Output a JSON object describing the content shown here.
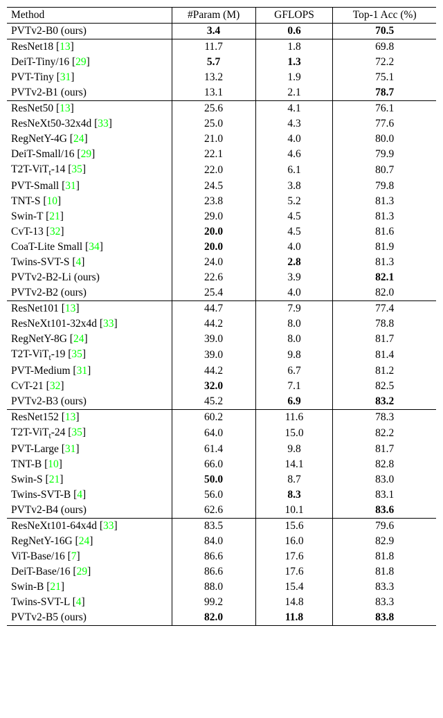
{
  "colors": {
    "cite": "#00ff00",
    "text": "#000000",
    "bg": "#ffffff"
  },
  "font": {
    "family": "Times New Roman",
    "size_pt": 15.5
  },
  "header": {
    "method": "Method",
    "param": "#Param (M)",
    "gflops": "GFLOPS",
    "acc": "Top-1 Acc (%)"
  },
  "groups": [
    {
      "rows": [
        {
          "method": "PVTv2-B0 (ours)",
          "cite": null,
          "param": "3.4",
          "gflops": "0.6",
          "acc": "70.5",
          "bold_param": true,
          "bold_gflops": true,
          "bold_acc": true
        }
      ]
    },
    {
      "rows": [
        {
          "method_pre": "ResNet18 [",
          "cite": "13",
          "method_post": "]",
          "param": "11.7",
          "gflops": "1.8",
          "acc": "69.8"
        },
        {
          "method_pre": "DeiT-Tiny/16 [",
          "cite": "29",
          "method_post": "]",
          "param": "5.7",
          "gflops": "1.3",
          "acc": "72.2",
          "bold_param": true,
          "bold_gflops": true
        },
        {
          "method_pre": "PVT-Tiny [",
          "cite": "31",
          "method_post": "]",
          "param": "13.2",
          "gflops": "1.9",
          "acc": "75.1"
        },
        {
          "method": "PVTv2-B1 (ours)",
          "cite": null,
          "param": "13.1",
          "gflops": "2.1",
          "acc": "78.7",
          "bold_acc": true
        }
      ]
    },
    {
      "rows": [
        {
          "method_pre": "ResNet50 [",
          "cite": "13",
          "method_post": "]",
          "param": "25.6",
          "gflops": "4.1",
          "acc": "76.1"
        },
        {
          "method_pre": "ResNeXt50-32x4d [",
          "cite": "33",
          "method_post": "]",
          "param": "25.0",
          "gflops": "4.3",
          "acc": "77.6"
        },
        {
          "method_pre": "RegNetY-4G [",
          "cite": "24",
          "method_post": "]",
          "param": "21.0",
          "gflops": "4.0",
          "acc": "80.0"
        },
        {
          "method_pre": "DeiT-Small/16 [",
          "cite": "29",
          "method_post": "]",
          "param": "22.1",
          "gflops": "4.6",
          "acc": "79.9"
        },
        {
          "method_pre": "T2T-ViT",
          "sub": "t",
          "method_mid": "-14 [",
          "cite": "35",
          "method_post": "]",
          "param": "22.0",
          "gflops": "6.1",
          "acc": "80.7"
        },
        {
          "method_pre": "PVT-Small [",
          "cite": "31",
          "method_post": "]",
          "param": "24.5",
          "gflops": "3.8",
          "acc": "79.8"
        },
        {
          "method_pre": "TNT-S [",
          "cite": "10",
          "method_post": "]",
          "param": "23.8",
          "gflops": "5.2",
          "acc": "81.3"
        },
        {
          "method_pre": "Swin-T [",
          "cite": "21",
          "method_post": "]",
          "param": "29.0",
          "gflops": "4.5",
          "acc": "81.3"
        },
        {
          "method_pre": "CvT-13 [",
          "cite": "32",
          "method_post": "]",
          "param": "20.0",
          "gflops": "4.5",
          "acc": "81.6",
          "bold_param": true
        },
        {
          "method_pre": "CoaT-Lite Small [",
          "cite": "34",
          "method_post": "]",
          "param": "20.0",
          "gflops": "4.0",
          "acc": "81.9",
          "bold_param": true
        },
        {
          "method_pre": "Twins-SVT-S [",
          "cite": "4",
          "method_post": "]",
          "param": "24.0",
          "gflops": "2.8",
          "acc": "81.3",
          "bold_gflops": true
        },
        {
          "method": "PVTv2-B2-Li (ours)",
          "cite": null,
          "param": "22.6",
          "gflops": "3.9",
          "acc": "82.1",
          "bold_acc": true
        },
        {
          "method": "PVTv2-B2 (ours)",
          "cite": null,
          "param": "25.4",
          "gflops": "4.0",
          "acc": "82.0"
        }
      ]
    },
    {
      "rows": [
        {
          "method_pre": "ResNet101 [",
          "cite": "13",
          "method_post": "]",
          "param": "44.7",
          "gflops": "7.9",
          "acc": "77.4"
        },
        {
          "method_pre": "ResNeXt101-32x4d [",
          "cite": "33",
          "method_post": "]",
          "param": "44.2",
          "gflops": "8.0",
          "acc": "78.8"
        },
        {
          "method_pre": "RegNetY-8G [",
          "cite": "24",
          "method_post": "]",
          "param": "39.0",
          "gflops": "8.0",
          "acc": "81.7"
        },
        {
          "method_pre": "T2T-ViT",
          "sub": "t",
          "method_mid": "-19 [",
          "cite": "35",
          "method_post": "]",
          "param": "39.0",
          "gflops": "9.8",
          "acc": "81.4"
        },
        {
          "method_pre": "PVT-Medium [",
          "cite": "31",
          "method_post": "]",
          "param": "44.2",
          "gflops": "6.7",
          "acc": "81.2"
        },
        {
          "method_pre": "CvT-21 [",
          "cite": "32",
          "method_post": "]",
          "param": "32.0",
          "gflops": "7.1",
          "acc": "82.5",
          "bold_param": true
        },
        {
          "method": "PVTv2-B3 (ours)",
          "cite": null,
          "param": "45.2",
          "gflops": "6.9",
          "acc": "83.2",
          "bold_gflops": true,
          "bold_acc": true
        }
      ]
    },
    {
      "rows": [
        {
          "method_pre": "ResNet152 [",
          "cite": "13",
          "method_post": "]",
          "param": "60.2",
          "gflops": "11.6",
          "acc": "78.3"
        },
        {
          "method_pre": "T2T-ViT",
          "sub": "t",
          "method_mid": "-24 [",
          "cite": "35",
          "method_post": "]",
          "param": "64.0",
          "gflops": "15.0",
          "acc": "82.2"
        },
        {
          "method_pre": "PVT-Large  [",
          "cite": "31",
          "method_post": "]",
          "param": "61.4",
          "gflops": "9.8",
          "acc": "81.7"
        },
        {
          "method_pre": "TNT-B  [",
          "cite": "10",
          "method_post": "]",
          "param": "66.0",
          "gflops": "14.1",
          "acc": "82.8"
        },
        {
          "method_pre": "Swin-S  [",
          "cite": "21",
          "method_post": "]",
          "param": "50.0",
          "gflops": "8.7",
          "acc": "83.0",
          "bold_param": true
        },
        {
          "method_pre": "Twins-SVT-B [",
          "cite": "4",
          "method_post": "]",
          "param": "56.0",
          "gflops": "8.3",
          "acc": "83.1",
          "bold_gflops": true
        },
        {
          "method": "PVTv2-B4 (ours)",
          "cite": null,
          "param": "62.6",
          "gflops": "10.1",
          "acc": "83.6",
          "bold_acc": true
        }
      ]
    },
    {
      "rows": [
        {
          "method_pre": "ResNeXt101-64x4d [",
          "cite": "33",
          "method_post": "]",
          "param": "83.5",
          "gflops": "15.6",
          "acc": "79.6"
        },
        {
          "method_pre": "RegNetY-16G [",
          "cite": "24",
          "method_post": "]",
          "param": "84.0",
          "gflops": "16.0",
          "acc": "82.9"
        },
        {
          "method_pre": "ViT-Base/16 [",
          "cite": "7",
          "method_post": "]",
          "param": "86.6",
          "gflops": "17.6",
          "acc": "81.8"
        },
        {
          "method_pre": "DeiT-Base/16 [",
          "cite": "29",
          "method_post": "]",
          "param": "86.6",
          "gflops": "17.6",
          "acc": "81.8"
        },
        {
          "method_pre": "Swin-B [",
          "cite": "21",
          "method_post": "]",
          "param": "88.0",
          "gflops": "15.4",
          "acc": "83.3"
        },
        {
          "method_pre": "Twins-SVT-L [",
          "cite": "4",
          "method_post": "]",
          "param": "99.2",
          "gflops": "14.8",
          "acc": "83.3"
        },
        {
          "method": "PVTv2-B5 (ours)",
          "cite": null,
          "param": "82.0",
          "gflops": "11.8",
          "acc": "83.8",
          "bold_param": true,
          "bold_gflops": true,
          "bold_acc": true
        }
      ]
    }
  ]
}
